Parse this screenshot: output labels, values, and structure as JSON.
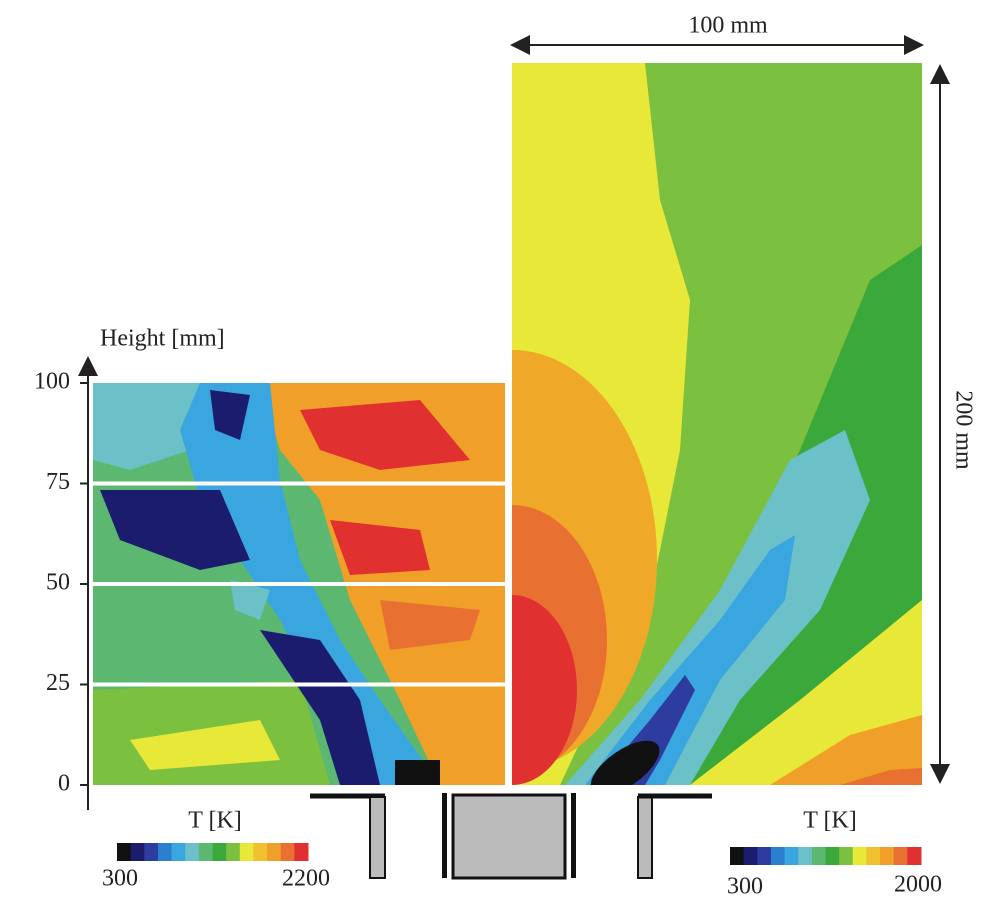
{
  "palette": [
    "#111111",
    "#1c1c6e",
    "#2d3c9e",
    "#2c7fd0",
    "#3aa6e0",
    "#6cc0c8",
    "#5cb870",
    "#3aa83a",
    "#7cc040",
    "#e8e838",
    "#f0c030",
    "#f0a028",
    "#e87030",
    "#e03030"
  ],
  "left_panel": {
    "ylabel": "Height [mm]",
    "ylim": [
      0,
      100
    ],
    "yticks": [
      0,
      25,
      50,
      75,
      100
    ],
    "colorbar": {
      "label": "T  [K]",
      "min": 300,
      "max": 2200
    }
  },
  "right_panel": {
    "width_label": "100 mm",
    "height_label": "200 mm",
    "colorbar": {
      "label": "T  [K]",
      "min": 300,
      "max": 2000
    }
  }
}
